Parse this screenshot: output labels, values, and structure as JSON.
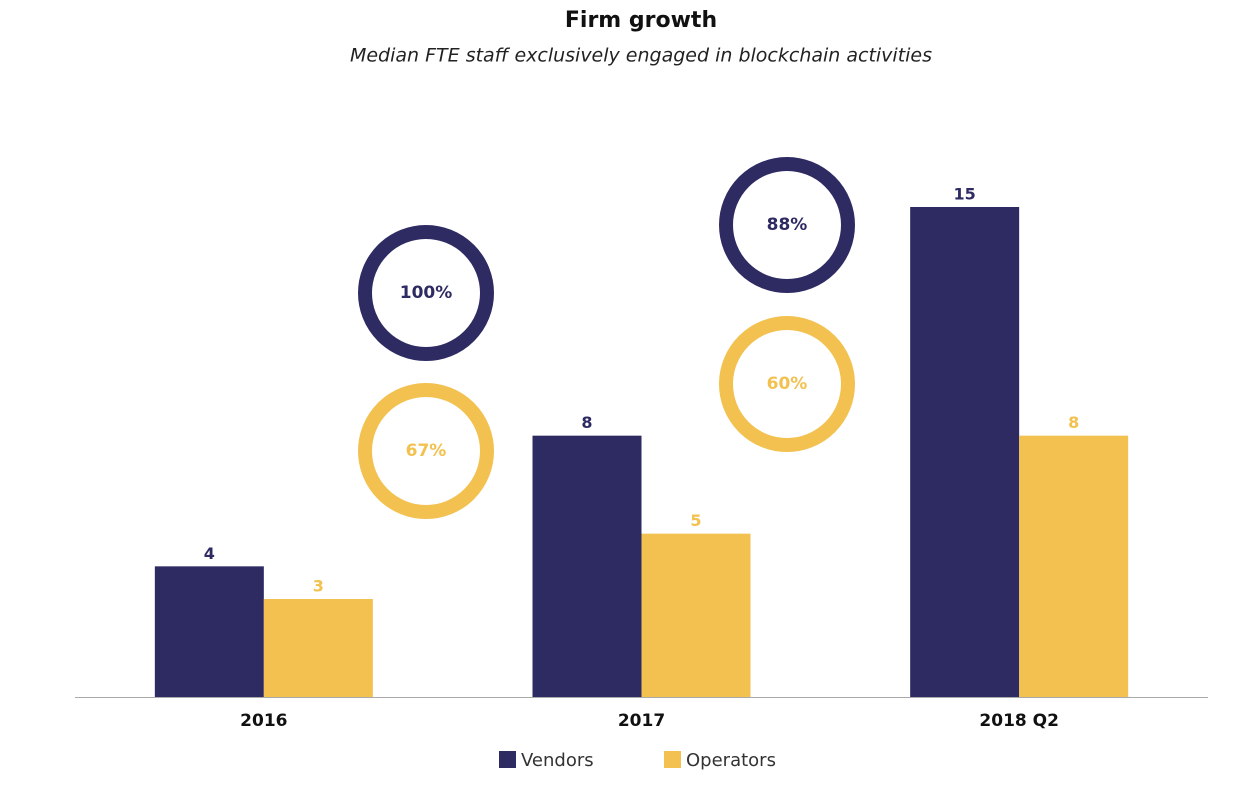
{
  "chart_data": {
    "type": "bar",
    "title": "Firm growth",
    "subtitle": "Median FTE staff exclusively engaged in blockchain activities",
    "categories": [
      "2016",
      "2017",
      "2018 Q2"
    ],
    "series": [
      {
        "name": "Vendors",
        "color": "#2e2b63",
        "values": [
          4,
          8,
          15
        ]
      },
      {
        "name": "Operators",
        "color": "#f2c14f",
        "values": [
          3,
          5,
          8
        ]
      }
    ],
    "annotations": [
      "100%",
      "67%",
      "88%",
      "60%"
    ]
  }
}
